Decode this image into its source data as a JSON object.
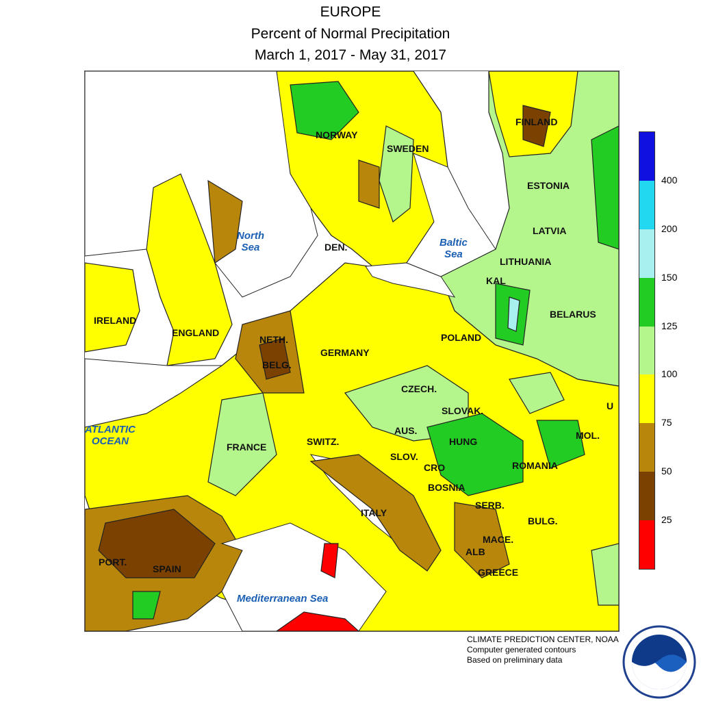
{
  "title": {
    "line1": "EUROPE",
    "line2": "Percent of Normal Precipitation",
    "line3": "March 1, 2017 - May 31, 2017"
  },
  "countries": {
    "norway": "NORWAY",
    "sweden": "SWEDEN",
    "finland": "FINLAND",
    "estonia": "ESTONIA",
    "latvia": "LATVIA",
    "lithuania": "LITHUANIA",
    "kal": "KAL",
    "belarus": "BELARUS",
    "ireland": "IRELAND",
    "england": "ENGLAND",
    "den": "DEN.",
    "neth": "NETH.",
    "belg": "BELG.",
    "germany": "GERMANY",
    "poland": "POLAND",
    "czech": "CZECH.",
    "slovak": "SLOVAK.",
    "ukr": "U",
    "france": "FRANCE",
    "switz": "SWITZ.",
    "aus": "AUS.",
    "hung": "HUNG",
    "mol": "MOL.",
    "slov": "SLOV.",
    "cro": "CRO",
    "romania": "ROMANIA",
    "bosnia": "BOSNIA",
    "serb": "SERB.",
    "bulg": "BULG.",
    "italy": "ITALY",
    "mace": "MACE.",
    "alb": "ALB",
    "greece": "GREECE",
    "port": "PORT.",
    "spain": "SPAIN"
  },
  "seas": {
    "north": "North\nSea",
    "baltic": "Baltic\nSea",
    "atlantic": "ATLANTIC\nOCEAN",
    "mediterranean": "Mediterranean Sea"
  },
  "legend": {
    "bins": [
      {
        "color": "#ff0000"
      },
      {
        "color": "#7a4100"
      },
      {
        "color": "#b8860b"
      },
      {
        "color": "#ffff00"
      },
      {
        "color": "#b4f58c"
      },
      {
        "color": "#22cc22"
      },
      {
        "color": "#a8f0f0"
      },
      {
        "color": "#22d8f0"
      },
      {
        "color": "#1010e0"
      }
    ],
    "ticks": [
      "25",
      "50",
      "75",
      "100",
      "125",
      "150",
      "200",
      "400"
    ]
  },
  "credits": {
    "line1": "CLIMATE PREDICTION CENTER, NOAA",
    "line2": "Computer generated contours",
    "line3": "Based on preliminary data"
  },
  "icons": {
    "logo": "noaa-logo"
  }
}
